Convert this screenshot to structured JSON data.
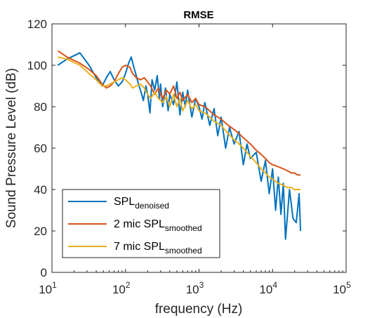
{
  "chart_data": {
    "type": "line",
    "title": "RMSE",
    "xlabel": "frequency (Hz)",
    "ylabel": "Sound Pressure Level (dB)",
    "xscale": "log",
    "xlim": [
      10,
      100000
    ],
    "ylim": [
      0,
      120
    ],
    "x_ticks": [
      {
        "base": "10",
        "exp": "1"
      },
      {
        "base": "10",
        "exp": "2"
      },
      {
        "base": "10",
        "exp": "3"
      },
      {
        "base": "10",
        "exp": "4"
      },
      {
        "base": "10",
        "exp": "5"
      }
    ],
    "y_ticks": [
      "0",
      "20",
      "40",
      "60",
      "80",
      "100",
      "120"
    ],
    "grid": false,
    "legend_position": "bottom-left",
    "series": [
      {
        "name": "SPL",
        "name_subscript": "denoised",
        "color": "#0072bd",
        "x": [
          12,
          16,
          24,
          32,
          40,
          48,
          55,
          62,
          70,
          80,
          90,
          100,
          110,
          120,
          130,
          140,
          150,
          160,
          175,
          190,
          200,
          215,
          230,
          250,
          270,
          290,
          300,
          320,
          350,
          380,
          400,
          450,
          500,
          550,
          600,
          650,
          700,
          800,
          900,
          1000,
          1100,
          1200,
          1400,
          1600,
          1800,
          2000,
          2300,
          2600,
          3000,
          3500,
          4000,
          4500,
          5000,
          6000,
          7000,
          8000,
          9000,
          10000,
          11000,
          12000,
          13000,
          14000,
          15000,
          17000,
          19000,
          21000,
          23000,
          24000
        ],
        "y": [
          100,
          103,
          106,
          100,
          94,
          90,
          94,
          97,
          93,
          90,
          92,
          96,
          101,
          104,
          99,
          95,
          91,
          88,
          83,
          90,
          86,
          77,
          93,
          88,
          95,
          84,
          91,
          80,
          89,
          78,
          86,
          81,
          92,
          76,
          87,
          80,
          88,
          75,
          84,
          80,
          74,
          82,
          71,
          79,
          66,
          75,
          60,
          70,
          62,
          68,
          52,
          62,
          55,
          58,
          44,
          54,
          38,
          50,
          30,
          46,
          28,
          43,
          16,
          40,
          26,
          24,
          38,
          20
        ]
      },
      {
        "name": "2 mic SPL",
        "name_subscript": "smoothed",
        "color": "#d95319",
        "x": [
          12,
          16,
          24,
          32,
          40,
          48,
          55,
          62,
          70,
          80,
          90,
          100,
          115,
          125,
          140,
          160,
          180,
          200,
          220,
          250,
          280,
          320,
          360,
          400,
          450,
          500,
          550,
          600,
          700,
          800,
          900,
          1000,
          1200,
          1400,
          1600,
          1800,
          2000,
          2500,
          3000,
          3500,
          4000,
          5000,
          6000,
          7000,
          8000,
          9000,
          10000,
          12000,
          14000,
          16000,
          18000,
          20000,
          22000,
          24000
        ],
        "y": [
          107,
          104,
          101,
          98,
          95,
          91,
          89,
          90,
          92,
          96,
          99,
          100,
          99,
          96,
          94,
          93,
          94,
          92,
          90,
          86,
          89,
          84,
          88,
          86,
          90,
          84,
          87,
          83,
          86,
          82,
          84,
          81,
          80,
          78,
          76,
          75,
          74,
          71,
          69,
          67,
          65,
          62,
          59,
          57,
          55,
          53,
          52,
          51,
          50,
          49,
          48,
          48,
          47,
          47
        ]
      },
      {
        "name": "7 mic SPL",
        "name_subscript": "smoothed",
        "color": "#edb120",
        "x": [
          12,
          16,
          24,
          32,
          40,
          48,
          55,
          62,
          70,
          80,
          90,
          100,
          115,
          125,
          140,
          160,
          180,
          200,
          220,
          250,
          280,
          320,
          360,
          400,
          450,
          500,
          550,
          600,
          700,
          800,
          900,
          1000,
          1200,
          1400,
          1600,
          1800,
          2000,
          2500,
          3000,
          3500,
          4000,
          5000,
          6000,
          7000,
          8000,
          9000,
          10000,
          12000,
          14000,
          16000,
          18000,
          20000,
          22000,
          24000
        ],
        "y": [
          104,
          103,
          100,
          96,
          93,
          90,
          90,
          91,
          92,
          93,
          94,
          93,
          91,
          89,
          90,
          91,
          89,
          86,
          84,
          87,
          84,
          82,
          85,
          80,
          86,
          80,
          84,
          78,
          83,
          79,
          81,
          78,
          77,
          75,
          73,
          72,
          71,
          67,
          64,
          62,
          60,
          56,
          53,
          50,
          48,
          46,
          45,
          43,
          42,
          41,
          41,
          40,
          40,
          40
        ]
      }
    ]
  }
}
